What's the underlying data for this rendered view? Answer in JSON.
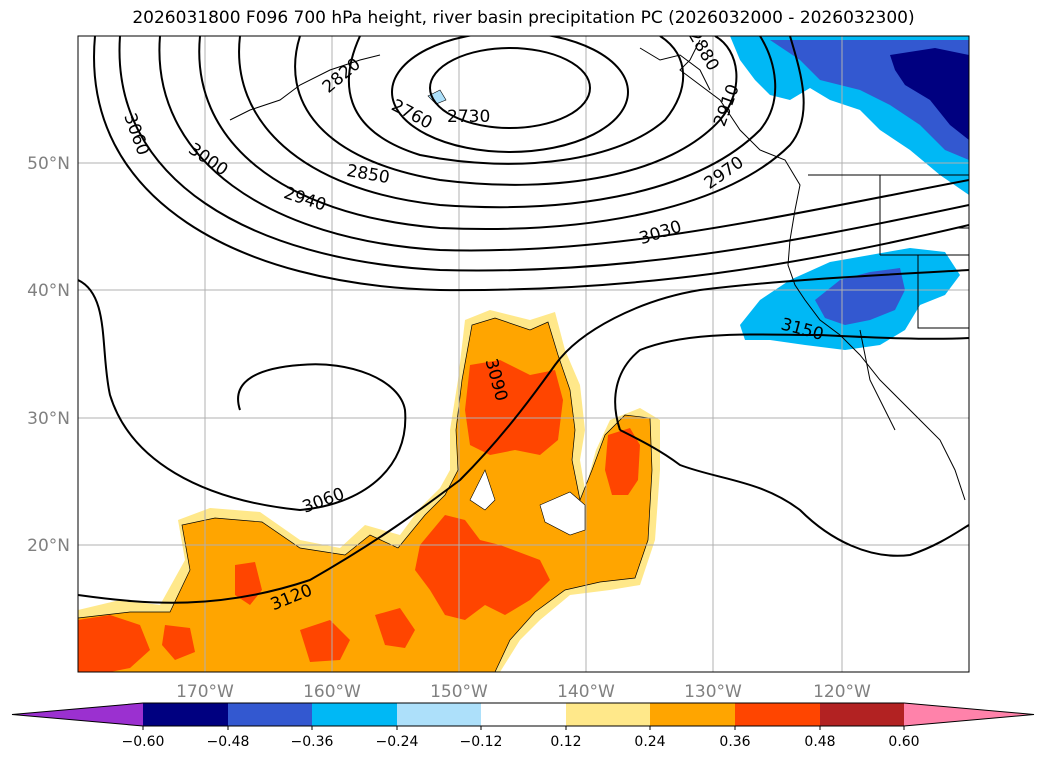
{
  "title": "2026031800 F096 700 hPa height, river basin precipitation PC (2026032000 - 2026032300)",
  "map": {
    "lon_ticks": [
      "170°W",
      "160°W",
      "150°W",
      "140°W",
      "130°W",
      "120°W"
    ],
    "lat_ticks": [
      "50°N",
      "40°N",
      "30°N",
      "20°N"
    ],
    "grid": true,
    "contour_color": "#000000",
    "contour_labels": [
      "3060",
      "3000",
      "2940",
      "2850",
      "2760",
      "2730",
      "2820",
      "2910",
      "2970",
      "3030",
      "3090",
      "3060",
      "3120",
      "3150",
      "2880"
    ]
  },
  "colorbar": {
    "ticks": [
      "−0.60",
      "−0.48",
      "−0.36",
      "−0.24",
      "−0.12",
      "0.12",
      "0.24",
      "0.36",
      "0.48",
      "0.60"
    ],
    "colors": [
      "#9b30d0",
      "#000080",
      "#3358d0",
      "#00b8f5",
      "#ade0fa",
      "#ffffff",
      "#ffe88a",
      "#ffa500",
      "#ff4500",
      "#b22222",
      "#ff82aa"
    ]
  }
}
